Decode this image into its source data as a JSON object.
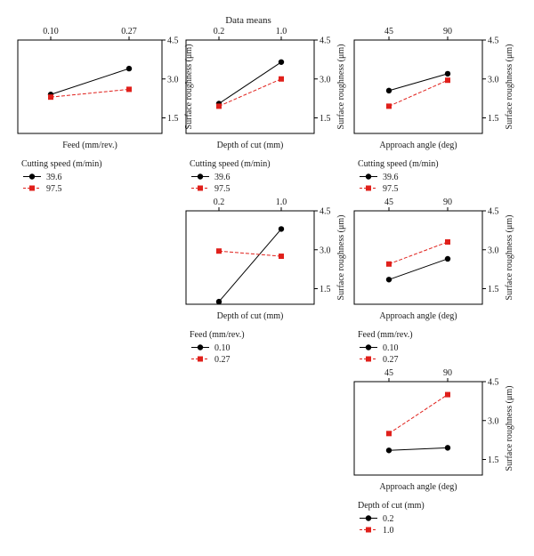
{
  "figure_title": "Data means",
  "chart_data": [
    {
      "type": "line",
      "panel": "feed-vs-cutting-speed",
      "xlabel": "Feed (mm/rev.)",
      "ylabel": "Surface roughness (μm)",
      "x": [
        "0.10",
        "0.27"
      ],
      "ylim": [
        0.9,
        4.5
      ],
      "yticks": [
        "4.5",
        "3.0",
        "1.5"
      ],
      "series": [
        {
          "name": "39.6",
          "values": [
            2.4,
            3.4
          ],
          "color": "#000000",
          "marker": "circle",
          "dash": "solid"
        },
        {
          "name": "97.5",
          "values": [
            2.3,
            2.6
          ],
          "color": "#e0201b",
          "marker": "square",
          "dash": "dashed"
        }
      ],
      "legend": {
        "title": "Cutting speed (m/min)",
        "placement": "below"
      }
    },
    {
      "type": "line",
      "panel": "depth-vs-cutting-speed",
      "xlabel": "Depth of cut (mm)",
      "ylabel": "Surface roughness (μm)",
      "x": [
        "0.2",
        "1.0"
      ],
      "ylim": [
        0.9,
        4.5
      ],
      "yticks": [
        "4.5",
        "3.0",
        "1.5"
      ],
      "series": [
        {
          "name": "39.6",
          "values": [
            2.05,
            3.65
          ],
          "color": "#000000",
          "marker": "circle",
          "dash": "solid"
        },
        {
          "name": "97.5",
          "values": [
            1.95,
            3.0
          ],
          "color": "#e0201b",
          "marker": "square",
          "dash": "dashed"
        }
      ],
      "legend": {
        "title": "Cutting speed (m/min)",
        "placement": "below"
      }
    },
    {
      "type": "line",
      "panel": "approach-vs-cutting-speed",
      "xlabel": "Approach angle (deg)",
      "ylabel": "Surface roughness (μm)",
      "x": [
        "45",
        "90"
      ],
      "ylim": [
        0.9,
        4.5
      ],
      "yticks": [
        "4.5",
        "3.0",
        "1.5"
      ],
      "series": [
        {
          "name": "39.6",
          "values": [
            2.55,
            3.2
          ],
          "color": "#000000",
          "marker": "circle",
          "dash": "solid"
        },
        {
          "name": "97.5",
          "values": [
            1.95,
            2.95
          ],
          "color": "#e0201b",
          "marker": "square",
          "dash": "dashed"
        }
      ],
      "legend": {
        "title": "Cutting speed (m/min)",
        "placement": "below"
      }
    },
    {
      "type": "line",
      "panel": "depth-vs-feed",
      "xlabel": "Depth of cut (mm)",
      "ylabel": "Surface roughness (μm)",
      "x": [
        "0.2",
        "1.0"
      ],
      "ylim": [
        0.9,
        4.5
      ],
      "yticks": [
        "4.5",
        "3.0",
        "1.5"
      ],
      "series": [
        {
          "name": "0.10",
          "values": [
            1.0,
            3.8
          ],
          "color": "#000000",
          "marker": "circle",
          "dash": "solid"
        },
        {
          "name": "0.27",
          "values": [
            2.95,
            2.75
          ],
          "color": "#e0201b",
          "marker": "square",
          "dash": "dashed"
        }
      ],
      "legend": {
        "title": "Feed (mm/rev.)",
        "placement": "below"
      }
    },
    {
      "type": "line",
      "panel": "approach-vs-feed",
      "xlabel": "Approach angle (deg)",
      "ylabel": "Surface roughness (μm)",
      "x": [
        "45",
        "90"
      ],
      "ylim": [
        0.9,
        4.5
      ],
      "yticks": [
        "4.5",
        "3.0",
        "1.5"
      ],
      "series": [
        {
          "name": "0.10",
          "values": [
            1.85,
            2.65
          ],
          "color": "#000000",
          "marker": "circle",
          "dash": "solid"
        },
        {
          "name": "0.27",
          "values": [
            2.45,
            3.3
          ],
          "color": "#e0201b",
          "marker": "square",
          "dash": "dashed"
        }
      ],
      "legend": {
        "title": "Feed (mm/rev.)",
        "placement": "below"
      }
    },
    {
      "type": "line",
      "panel": "approach-vs-depth",
      "xlabel": "Approach angle (deg)",
      "ylabel": "Surface roughness (μm)",
      "x": [
        "45",
        "90"
      ],
      "ylim": [
        0.9,
        4.5
      ],
      "yticks": [
        "4.5",
        "3.0",
        "1.5"
      ],
      "series": [
        {
          "name": "0.2",
          "values": [
            1.85,
            1.95
          ],
          "color": "#000000",
          "marker": "circle",
          "dash": "solid"
        },
        {
          "name": "1.0",
          "values": [
            2.5,
            4.0
          ],
          "color": "#e0201b",
          "marker": "square",
          "dash": "dashed"
        }
      ],
      "legend": {
        "title": "Depth of cut (mm)",
        "placement": "below"
      }
    }
  ]
}
